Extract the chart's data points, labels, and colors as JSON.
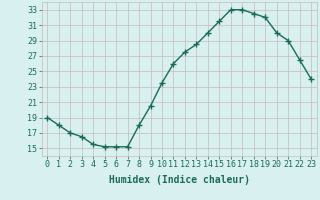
{
  "x": [
    0,
    1,
    2,
    3,
    4,
    5,
    6,
    7,
    8,
    9,
    10,
    11,
    12,
    13,
    14,
    15,
    16,
    17,
    18,
    19,
    20,
    21,
    22,
    23
  ],
  "y": [
    19,
    18,
    17,
    16.5,
    15.5,
    15.2,
    15.2,
    15.2,
    18,
    20.5,
    23.5,
    26,
    27.5,
    28.5,
    30,
    31.5,
    33,
    33,
    32.5,
    32,
    30,
    29,
    26.5,
    24
  ],
  "line_color": "#1a6b5a",
  "marker": "+",
  "marker_size": 4,
  "marker_edge_width": 1.0,
  "bg_color": "#d8f0f0",
  "grid_color": "#c8b8b8",
  "xlabel": "Humidex (Indice chaleur)",
  "xlim": [
    -0.5,
    23.5
  ],
  "ylim": [
    14,
    34
  ],
  "yticks": [
    15,
    17,
    19,
    21,
    23,
    25,
    27,
    29,
    31,
    33
  ],
  "xtick_labels": [
    "0",
    "1",
    "2",
    "3",
    "4",
    "5",
    "6",
    "7",
    "8",
    "9",
    "10",
    "11",
    "12",
    "13",
    "14",
    "15",
    "16",
    "17",
    "18",
    "19",
    "20",
    "21",
    "22",
    "23"
  ],
  "xlabel_fontsize": 7,
  "tick_fontsize": 6,
  "line_width": 1.0
}
